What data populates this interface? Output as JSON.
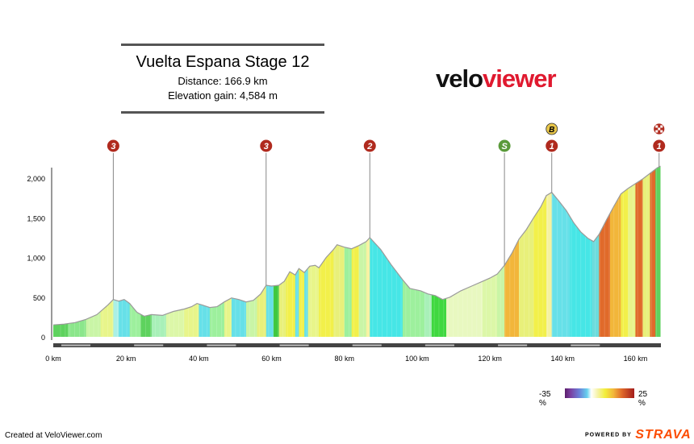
{
  "header": {
    "title": "Vuelta Espana Stage 12",
    "distance": "Distance: 166.9 km",
    "elevation_gain": "Elevation gain: 4,584 m"
  },
  "logo": {
    "part1": "velo",
    "part2": "viewer"
  },
  "legend": {
    "min": "-35 %",
    "max": "25 %"
  },
  "footer": {
    "credit": "Created at VeloViewer.com",
    "powered": "POWERED BY",
    "brand": "STRAVA"
  },
  "colors": {
    "brand_red": "#e0192f",
    "strava_orange": "#fc4c02",
    "climb_marker": "#b02a1e",
    "sprint_marker": "#5a9a3a",
    "bonus_marker": "#e8c64a"
  },
  "chart_data": {
    "type": "area",
    "xlabel": "",
    "ylabel": "",
    "xlim": [
      0,
      167
    ],
    "ylim": [
      0,
      2200
    ],
    "x_ticks": [
      "0 km",
      "20 km",
      "40 km",
      "60 km",
      "80 km",
      "100 km",
      "120 km",
      "140 km",
      "160 km"
    ],
    "x_tick_values": [
      0,
      20,
      40,
      60,
      80,
      100,
      120,
      140,
      160
    ],
    "y_ticks": [
      "0",
      "500",
      "1,000",
      "1,500",
      "2,000"
    ],
    "y_tick_values": [
      0,
      500,
      1000,
      1500,
      2000
    ],
    "profile": [
      [
        0,
        150
      ],
      [
        3,
        160
      ],
      [
        6,
        180
      ],
      [
        9,
        220
      ],
      [
        12,
        280
      ],
      [
        15,
        400
      ],
      [
        16.5,
        470
      ],
      [
        18,
        450
      ],
      [
        19.5,
        470
      ],
      [
        21,
        420
      ],
      [
        23,
        310
      ],
      [
        25,
        260
      ],
      [
        27,
        280
      ],
      [
        30,
        270
      ],
      [
        33,
        320
      ],
      [
        36,
        350
      ],
      [
        38,
        380
      ],
      [
        39.5,
        420
      ],
      [
        41,
        400
      ],
      [
        43,
        370
      ],
      [
        45,
        380
      ],
      [
        47,
        440
      ],
      [
        49,
        490
      ],
      [
        51,
        470
      ],
      [
        53,
        440
      ],
      [
        55,
        460
      ],
      [
        57,
        540
      ],
      [
        58.5,
        650
      ],
      [
        60,
        640
      ],
      [
        62,
        650
      ],
      [
        63.5,
        700
      ],
      [
        65,
        820
      ],
      [
        66.5,
        780
      ],
      [
        67.5,
        860
      ],
      [
        69,
        810
      ],
      [
        70.5,
        890
      ],
      [
        72,
        900
      ],
      [
        73,
        870
      ],
      [
        75,
        1000
      ],
      [
        77,
        1100
      ],
      [
        78,
        1160
      ],
      [
        80,
        1130
      ],
      [
        82,
        1110
      ],
      [
        84,
        1150
      ],
      [
        86,
        1200
      ],
      [
        87,
        1250
      ],
      [
        90,
        1100
      ],
      [
        93,
        900
      ],
      [
        96,
        720
      ],
      [
        98,
        610
      ],
      [
        101,
        580
      ],
      [
        103,
        540
      ],
      [
        105,
        520
      ],
      [
        107,
        470
      ],
      [
        109,
        500
      ],
      [
        112,
        580
      ],
      [
        115,
        640
      ],
      [
        118,
        700
      ],
      [
        120,
        740
      ],
      [
        122,
        790
      ],
      [
        124,
        900
      ],
      [
        126,
        1050
      ],
      [
        128,
        1230
      ],
      [
        130,
        1350
      ],
      [
        132,
        1500
      ],
      [
        134,
        1640
      ],
      [
        135.5,
        1780
      ],
      [
        137,
        1820
      ],
      [
        139,
        1710
      ],
      [
        141,
        1590
      ],
      [
        143,
        1440
      ],
      [
        145,
        1320
      ],
      [
        147,
        1240
      ],
      [
        148.5,
        1200
      ],
      [
        150,
        1290
      ],
      [
        152,
        1470
      ],
      [
        154,
        1640
      ],
      [
        156,
        1800
      ],
      [
        158,
        1870
      ],
      [
        160,
        1930
      ],
      [
        162,
        1990
      ],
      [
        164,
        2060
      ],
      [
        166,
        2130
      ],
      [
        166.9,
        2150
      ]
    ],
    "gradient_segments": [
      [
        0,
        "#5ed25e"
      ],
      [
        4,
        "#8be68b"
      ],
      [
        9,
        "#c9f5a6"
      ],
      [
        13,
        "#e8f58a"
      ],
      [
        16.5,
        "#aaf0e6"
      ],
      [
        18,
        "#66e0e8"
      ],
      [
        21,
        "#9df09d"
      ],
      [
        24,
        "#5ed25e"
      ],
      [
        27,
        "#a8f0b8"
      ],
      [
        31,
        "#dcf7a8"
      ],
      [
        36,
        "#e8f58a"
      ],
      [
        40,
        "#66e0e8"
      ],
      [
        43,
        "#9df09d"
      ],
      [
        47,
        "#e8f58a"
      ],
      [
        49,
        "#66e0e8"
      ],
      [
        53,
        "#c9f5a6"
      ],
      [
        56,
        "#e8f07a"
      ],
      [
        58.5,
        "#66e0e8"
      ],
      [
        60.5,
        "#3fc83f"
      ],
      [
        62,
        "#e8f07a"
      ],
      [
        64,
        "#f2f04a"
      ],
      [
        66.5,
        "#66e0e8"
      ],
      [
        67.5,
        "#f2f04a"
      ],
      [
        69,
        "#66e0e8"
      ],
      [
        70,
        "#e8f58a"
      ],
      [
        73,
        "#f2f04a"
      ],
      [
        77,
        "#e8f07a"
      ],
      [
        80,
        "#9df09d"
      ],
      [
        82,
        "#f2f04a"
      ],
      [
        84,
        "#c9f5a6"
      ],
      [
        86,
        "#f5f2a0"
      ],
      [
        87,
        "#46e6e6"
      ],
      [
        96,
        "#9df09d"
      ],
      [
        102,
        "#a8f0b8"
      ],
      [
        104,
        "#3fd83f"
      ],
      [
        108,
        "#e8f8c0"
      ],
      [
        118,
        "#dcf7a8"
      ],
      [
        122,
        "#c9f5a6"
      ],
      [
        124,
        "#f2b63a"
      ],
      [
        128,
        "#e8f07a"
      ],
      [
        132,
        "#f2f04a"
      ],
      [
        135.5,
        "#f5f2a0"
      ],
      [
        137,
        "#66e0e8"
      ],
      [
        142,
        "#46e6e6"
      ],
      [
        148,
        "#6bdcdc"
      ],
      [
        150,
        "#e06a2a"
      ],
      [
        153,
        "#f2b63a"
      ],
      [
        156,
        "#f2f04a"
      ],
      [
        158,
        "#e8f58a"
      ],
      [
        160,
        "#e06a2a"
      ],
      [
        162,
        "#e8f07a"
      ],
      [
        164,
        "#e06a2a"
      ],
      [
        165.5,
        "#5ed25e"
      ],
      [
        166.9,
        "#5ed25e"
      ]
    ],
    "markers": [
      {
        "km": 16.5,
        "label": "3",
        "type": "climb"
      },
      {
        "km": 58.5,
        "label": "3",
        "type": "climb"
      },
      {
        "km": 87,
        "label": "2",
        "type": "climb"
      },
      {
        "km": 124,
        "label": "S",
        "type": "sprint"
      },
      {
        "km": 137,
        "label": "1",
        "type": "climb",
        "extra": "B"
      },
      {
        "km": 166.5,
        "label": "1",
        "type": "climb",
        "extra": "finish"
      }
    ]
  }
}
